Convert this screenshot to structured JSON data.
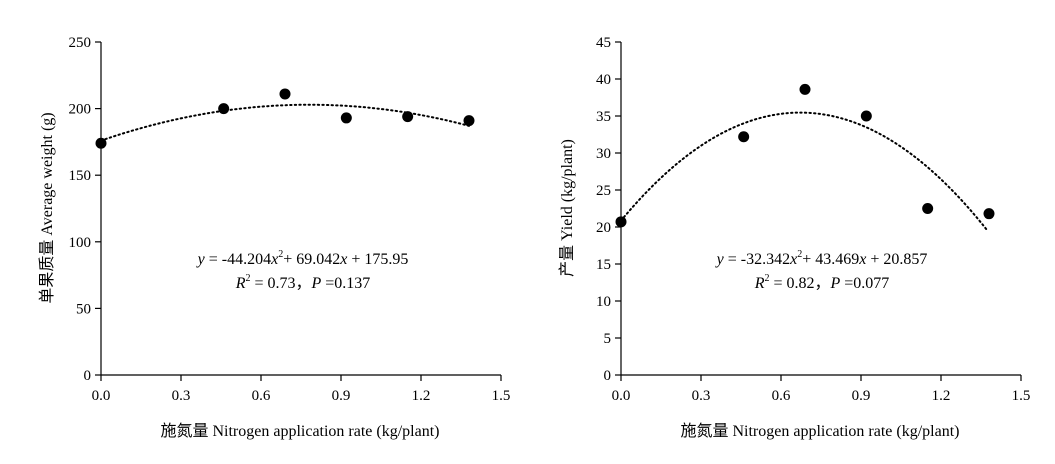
{
  "chart_data": [
    {
      "type": "scatter",
      "x": [
        0.0,
        0.46,
        0.69,
        0.92,
        1.15,
        1.38
      ],
      "values": [
        174,
        200,
        211,
        193,
        194,
        191
      ],
      "xlabel": "施氮量 Nitrogen application rate (kg/plant)",
      "ylabel": "单果质量 Average weight (g)",
      "xlim": [
        0,
        1.5
      ],
      "ylim": [
        0,
        250
      ],
      "xticks": [
        "0.0",
        "0.3",
        "0.6",
        "0.9",
        "1.2",
        "1.5"
      ],
      "yticks": [
        "0",
        "50",
        "100",
        "150",
        "200",
        "250"
      ],
      "fit": {
        "a": -44.204,
        "b": 69.042,
        "c": 175.95,
        "x_range": [
          0,
          1.38
        ]
      },
      "equation": {
        "y": "y",
        "part1": " = -44.204",
        "x1": "x",
        "sup1": "2",
        "part2": "+ 69.042",
        "x2": "x",
        "part3": " + 175.95",
        "r": "R",
        "rsup": "2",
        "rpart": " = 0.73，",
        "p": "P",
        "ppart": " =0.137"
      },
      "grid": false,
      "marker_color": "#000000"
    },
    {
      "type": "scatter",
      "x": [
        0.0,
        0.46,
        0.69,
        0.92,
        1.15,
        1.38
      ],
      "values": [
        20.7,
        32.2,
        38.6,
        35.0,
        22.5,
        21.8
      ],
      "xlabel": "施氮量 Nitrogen application rate (kg/plant)",
      "ylabel": "产量 Yield (kg/plant)",
      "xlim": [
        0,
        1.5
      ],
      "ylim": [
        0,
        45
      ],
      "xticks": [
        "0.0",
        "0.3",
        "0.6",
        "0.9",
        "1.2",
        "1.5"
      ],
      "yticks": [
        "0",
        "5",
        "10",
        "15",
        "20",
        "25",
        "30",
        "35",
        "40",
        "45"
      ],
      "fit": {
        "a": -32.342,
        "b": 43.469,
        "c": 20.857,
        "x_range": [
          0,
          1.37
        ]
      },
      "equation": {
        "y": "y",
        "part1": " = -32.342",
        "x1": "x",
        "sup1": "2",
        "part2": "+ 43.469",
        "x2": "x",
        "part3": " + 20.857",
        "r": "R",
        "rsup": "2",
        "rpart": " = 0.82，",
        "p": "P",
        "ppart": " =0.077"
      },
      "grid": false,
      "marker_color": "#000000"
    }
  ]
}
